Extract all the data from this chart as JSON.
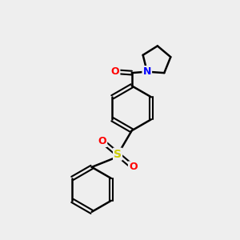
{
  "background_color": "#eeeeee",
  "bond_color": "#000000",
  "atom_colors": {
    "O": "#ff0000",
    "N": "#0000ff",
    "S": "#cccc00",
    "C": "#000000"
  },
  "figsize": [
    3.0,
    3.0
  ],
  "dpi": 100
}
